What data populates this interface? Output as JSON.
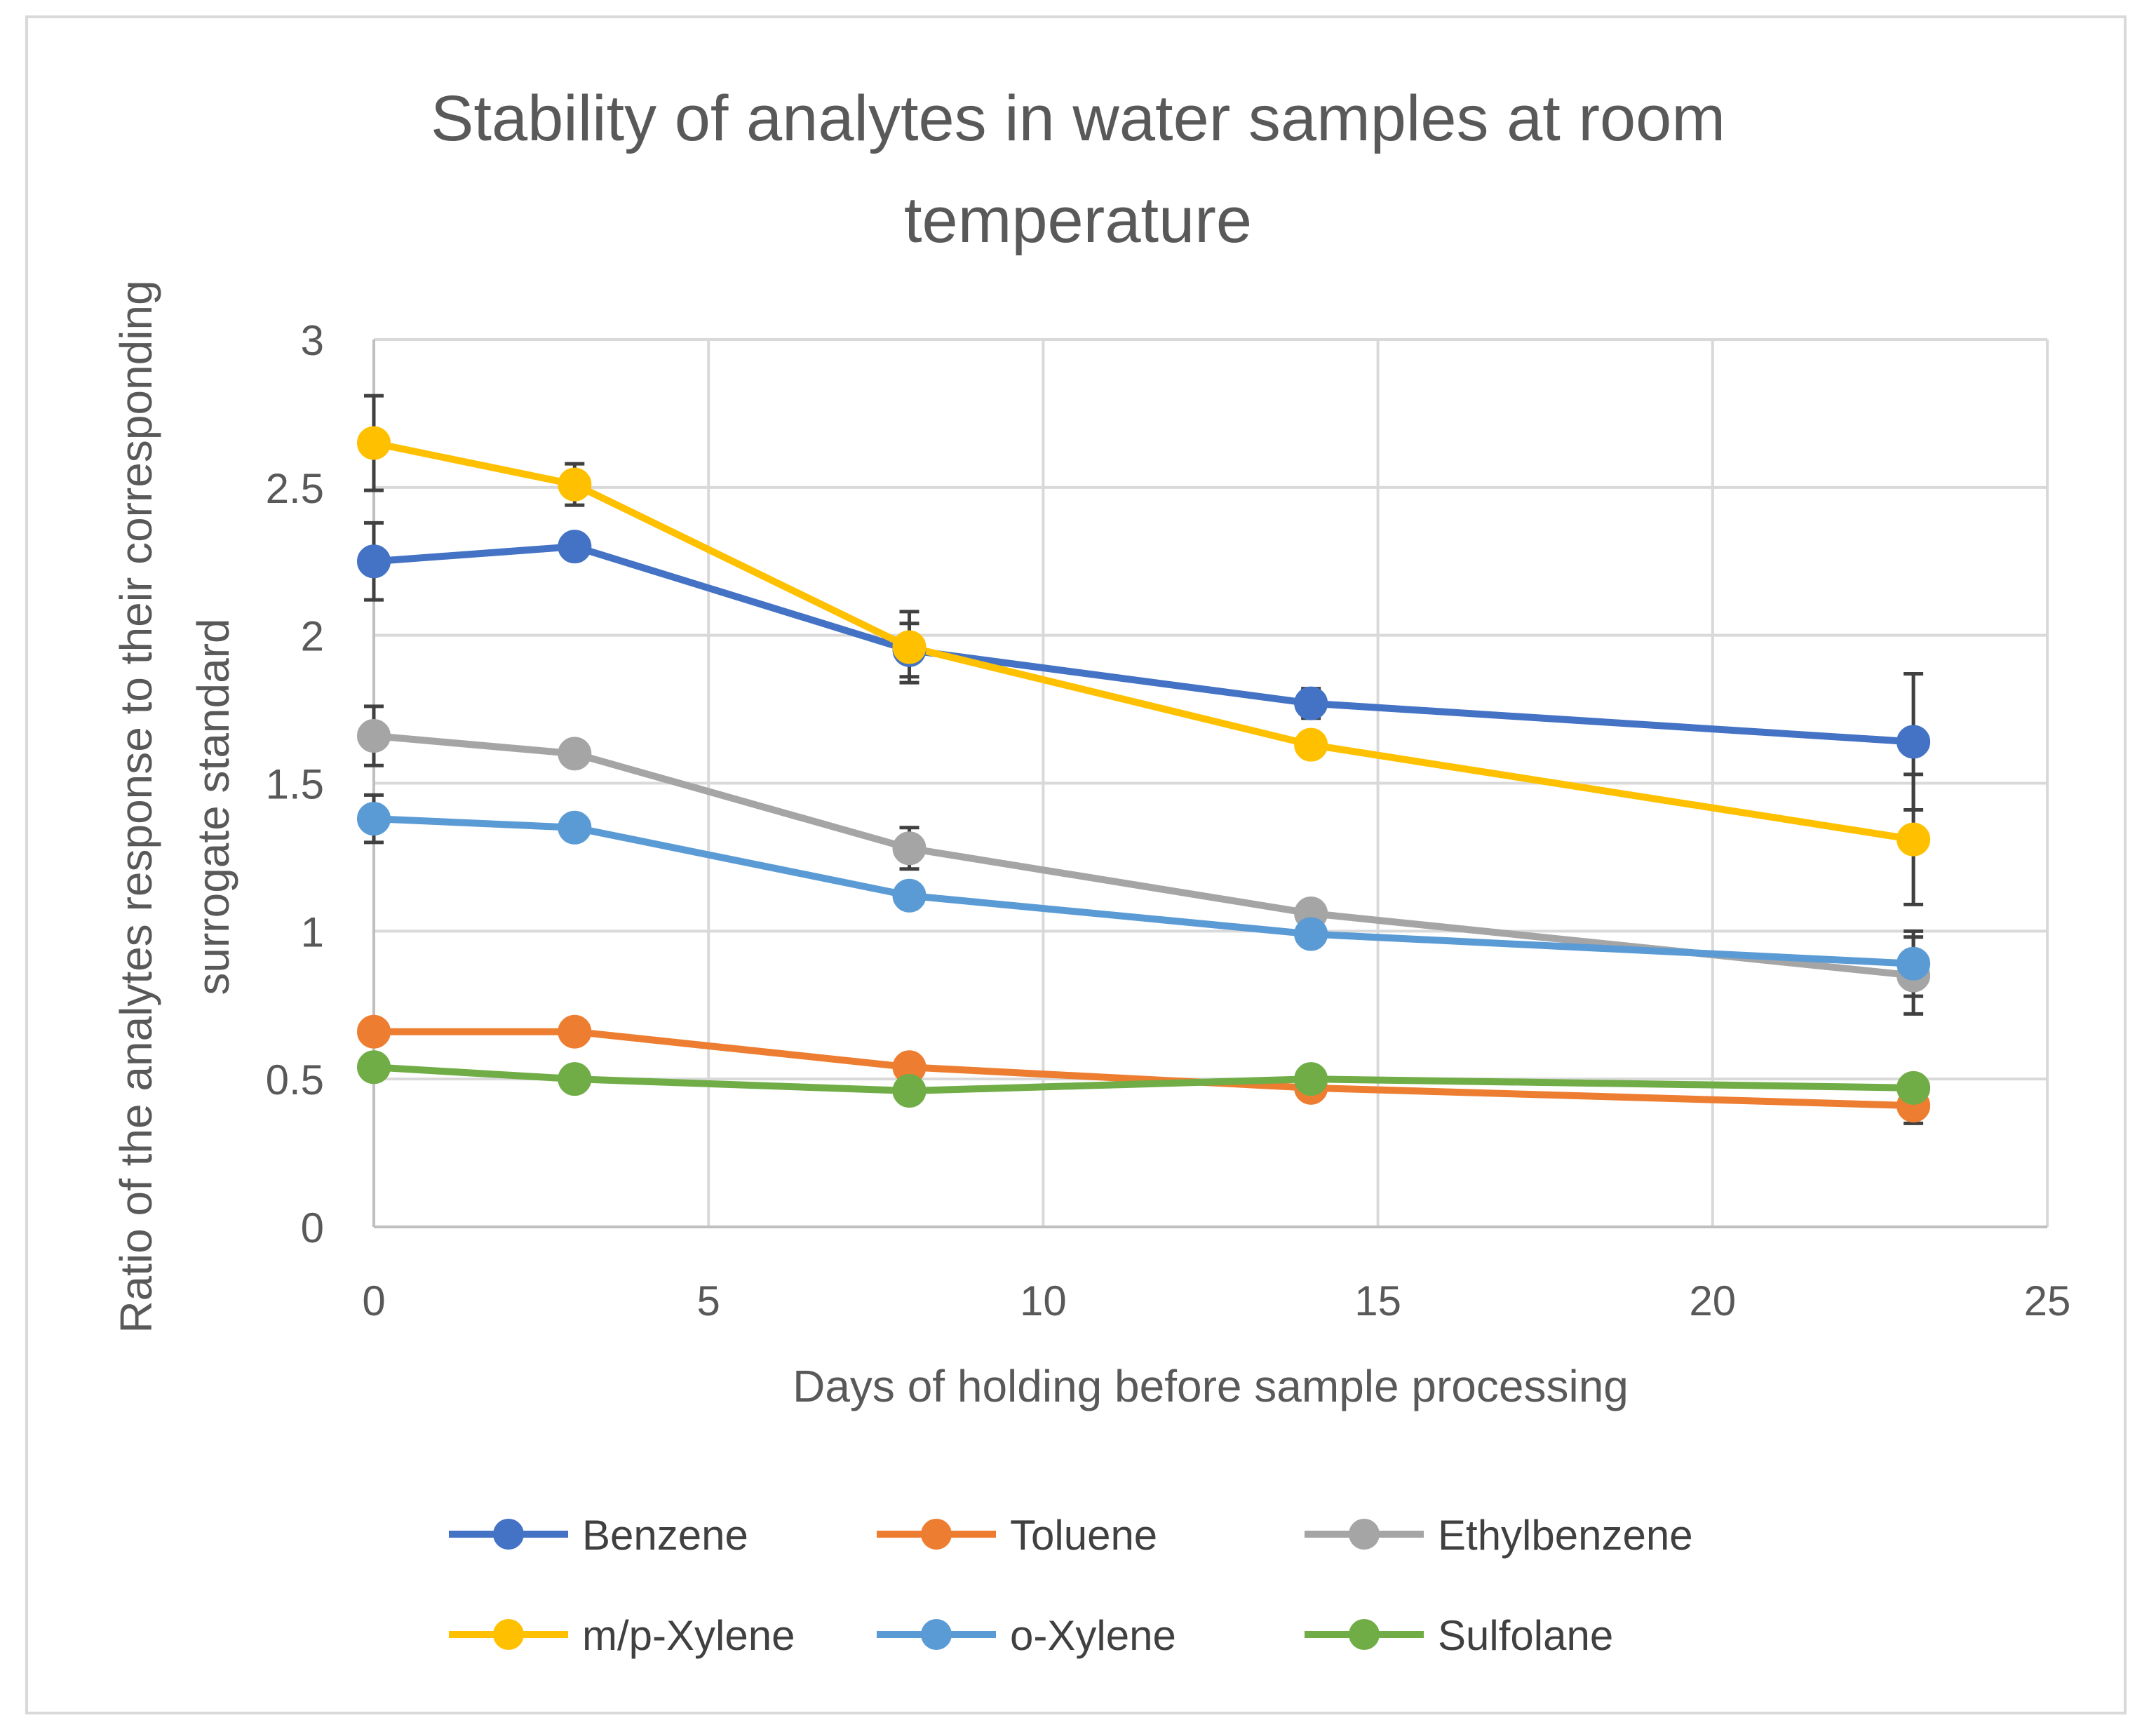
{
  "chart_data": {
    "type": "line",
    "title": "Stability of analytes in water samples at room temperature",
    "title_lines": [
      "Stability of analytes in water samples at room",
      "temperature"
    ],
    "xlabel": "Days of holding before sample processing",
    "ylabel": "Ratio of the analytes response to their corresponding surrogate standard",
    "ylabel_lines": [
      "Ratio of the analytes response to their corresponding",
      "surrogate standard"
    ],
    "xlim": [
      0,
      25
    ],
    "ylim": [
      0,
      3
    ],
    "xticks": [
      0,
      5,
      10,
      15,
      20,
      25
    ],
    "yticks": [
      0,
      0.5,
      1,
      1.5,
      2,
      2.5,
      3
    ],
    "xtick_labels": [
      "0",
      "5",
      "10",
      "15",
      "20",
      "25"
    ],
    "ytick_labels": [
      "0",
      "0.5",
      "1",
      "1.5",
      "2",
      "2.5",
      "3"
    ],
    "grid": true,
    "legend_position": "bottom",
    "x": [
      0,
      3,
      8,
      14,
      23
    ],
    "series": [
      {
        "name": "Benzene",
        "color": "#4472c4",
        "values": [
          2.25,
          2.3,
          1.95,
          1.77,
          1.64
        ],
        "errors": [
          0.13,
          0.03,
          0.09,
          0.05,
          0.23
        ]
      },
      {
        "name": "Toluene",
        "color": "#ed7d31",
        "values": [
          0.66,
          0.66,
          0.54,
          0.47,
          0.41
        ],
        "errors": [
          0.02,
          0.02,
          0.02,
          0.02,
          0.06
        ]
      },
      {
        "name": "Ethylbenzene",
        "color": "#a5a5a5",
        "values": [
          1.66,
          1.6,
          1.28,
          1.06,
          0.85
        ],
        "errors": [
          0.1,
          0.03,
          0.07,
          0.02,
          0.13
        ]
      },
      {
        "name": "m/p-Xylene",
        "color": "#ffc000",
        "values": [
          2.65,
          2.51,
          1.96,
          1.63,
          1.31
        ],
        "errors": [
          0.16,
          0.07,
          0.12,
          0.03,
          0.22
        ]
      },
      {
        "name": "o-Xylene",
        "color": "#5b9bd5",
        "values": [
          1.38,
          1.35,
          1.12,
          0.99,
          0.89
        ],
        "errors": [
          0.08,
          0.02,
          0.04,
          0.02,
          0.11
        ]
      },
      {
        "name": "Sulfolane",
        "color": "#70ad47",
        "values": [
          0.54,
          0.5,
          0.46,
          0.5,
          0.47
        ],
        "errors": [
          0.02,
          0.02,
          0.02,
          0.02,
          0.02
        ]
      }
    ],
    "error_bar_color": "#404040",
    "gridline_color": "#d9d9d9"
  }
}
